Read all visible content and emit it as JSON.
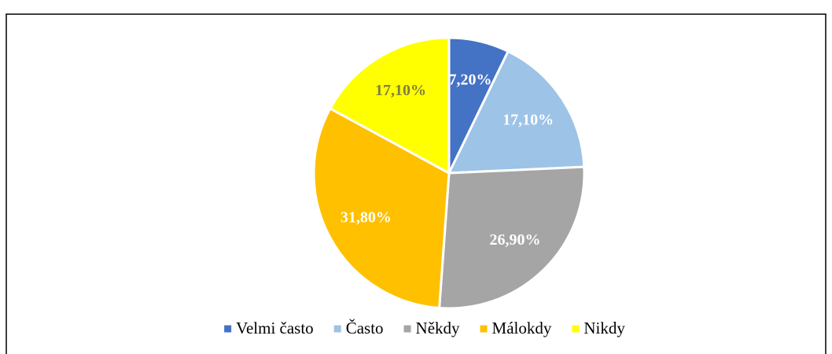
{
  "chart_data": {
    "type": "pie",
    "categories": [
      "Velmi často",
      "Často",
      "Někdy",
      "Málokdy",
      "Nikdy"
    ],
    "values": [
      7.2,
      17.1,
      26.9,
      31.8,
      17.1
    ],
    "value_labels": [
      "7,20%",
      "17,10%",
      "26,90%",
      "31,80%",
      "17,10%"
    ],
    "colors": [
      "#4472c4",
      "#9dc3e6",
      "#a5a5a5",
      "#ffc000",
      "#ffff00"
    ],
    "label_colors": [
      "#ffffff",
      "#ffffff",
      "#ffffff",
      "#ffffff",
      "#7f7f3f"
    ],
    "legend": "bottom"
  }
}
